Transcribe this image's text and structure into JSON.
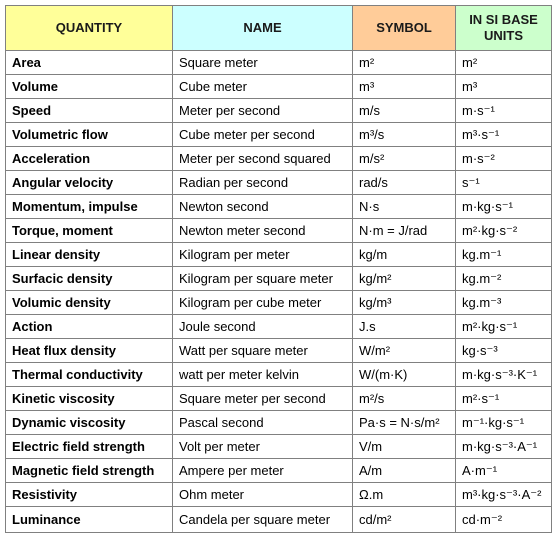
{
  "headers": {
    "quantity": "QUANTITY",
    "name": "NAME",
    "symbol": "SYMBOL",
    "si_base": "IN SI BASE UNITS"
  },
  "header_colors": {
    "quantity": "#ffff99",
    "name": "#ccffff",
    "symbol": "#ffcc99",
    "si_base": "#ccffcc"
  },
  "rows": [
    {
      "quantity": "Area",
      "name": "Square meter",
      "symbol": "m²",
      "si": "m²"
    },
    {
      "quantity": "Volume",
      "name": "Cube meter",
      "symbol": "m³",
      "si": "m³"
    },
    {
      "quantity": "Speed",
      "name": "Meter per second",
      "symbol": "m/s",
      "si": "m·s⁻¹"
    },
    {
      "quantity": "Volumetric flow",
      "name": "Cube meter per second",
      "symbol": "m³/s",
      "si": "m³·s⁻¹"
    },
    {
      "quantity": "Acceleration",
      "name": "Meter per second squared",
      "symbol": "m/s²",
      "si": "m·s⁻²"
    },
    {
      "quantity": "Angular velocity",
      "name": "Radian per second",
      "symbol": "rad/s",
      "si": "s⁻¹"
    },
    {
      "quantity": "Momentum, impulse",
      "name": "Newton second",
      "symbol": "N·s",
      "si": "m·kg·s⁻¹"
    },
    {
      "quantity": "Torque, moment",
      "name": "Newton meter second",
      "symbol": "N·m = J/rad",
      "si": "m²·kg·s⁻²"
    },
    {
      "quantity": "Linear density",
      "name": "Kilogram per meter",
      "symbol": "kg/m",
      "si": "kg.m⁻¹"
    },
    {
      "quantity": "Surfacic density",
      "name": "Kilogram per square meter",
      "symbol": "kg/m²",
      "si": "kg.m⁻²"
    },
    {
      "quantity": "Volumic density",
      "name": "Kilogram per cube meter",
      "symbol": "kg/m³",
      "si": "kg.m⁻³"
    },
    {
      "quantity": "Action",
      "name": "Joule second",
      "symbol": "J.s",
      "si": "m²·kg·s⁻¹"
    },
    {
      "quantity": "Heat flux density",
      "name": "Watt per square meter",
      "symbol": "W/m²",
      "si": "kg·s⁻³"
    },
    {
      "quantity": "Thermal conductivity",
      "name": "watt per meter kelvin",
      "symbol": "W/(m·K)",
      "si": "m·kg·s⁻³·K⁻¹"
    },
    {
      "quantity": "Kinetic viscosity",
      "name": "Square meter per second",
      "symbol": "m²/s",
      "si": "m²·s⁻¹"
    },
    {
      "quantity": "Dynamic viscosity",
      "name": "Pascal second",
      "symbol": "Pa·s = N·s/m²",
      "si": "m⁻¹·kg·s⁻¹"
    },
    {
      "quantity": "Electric field strength",
      "name": "Volt per meter",
      "symbol": "V/m",
      "si": "m·kg·s⁻³·A⁻¹"
    },
    {
      "quantity": "Magnetic field strength",
      "name": "Ampere per meter",
      "symbol": "A/m",
      "si": "A·m⁻¹"
    },
    {
      "quantity": "Resistivity",
      "name": "Ohm meter",
      "symbol": "Ω.m",
      "si": "m³·kg·s⁻³·A⁻²"
    },
    {
      "quantity": "Luminance",
      "name": "Candela per square meter",
      "symbol": "cd/m²",
      "si": "cd·m⁻²"
    }
  ]
}
